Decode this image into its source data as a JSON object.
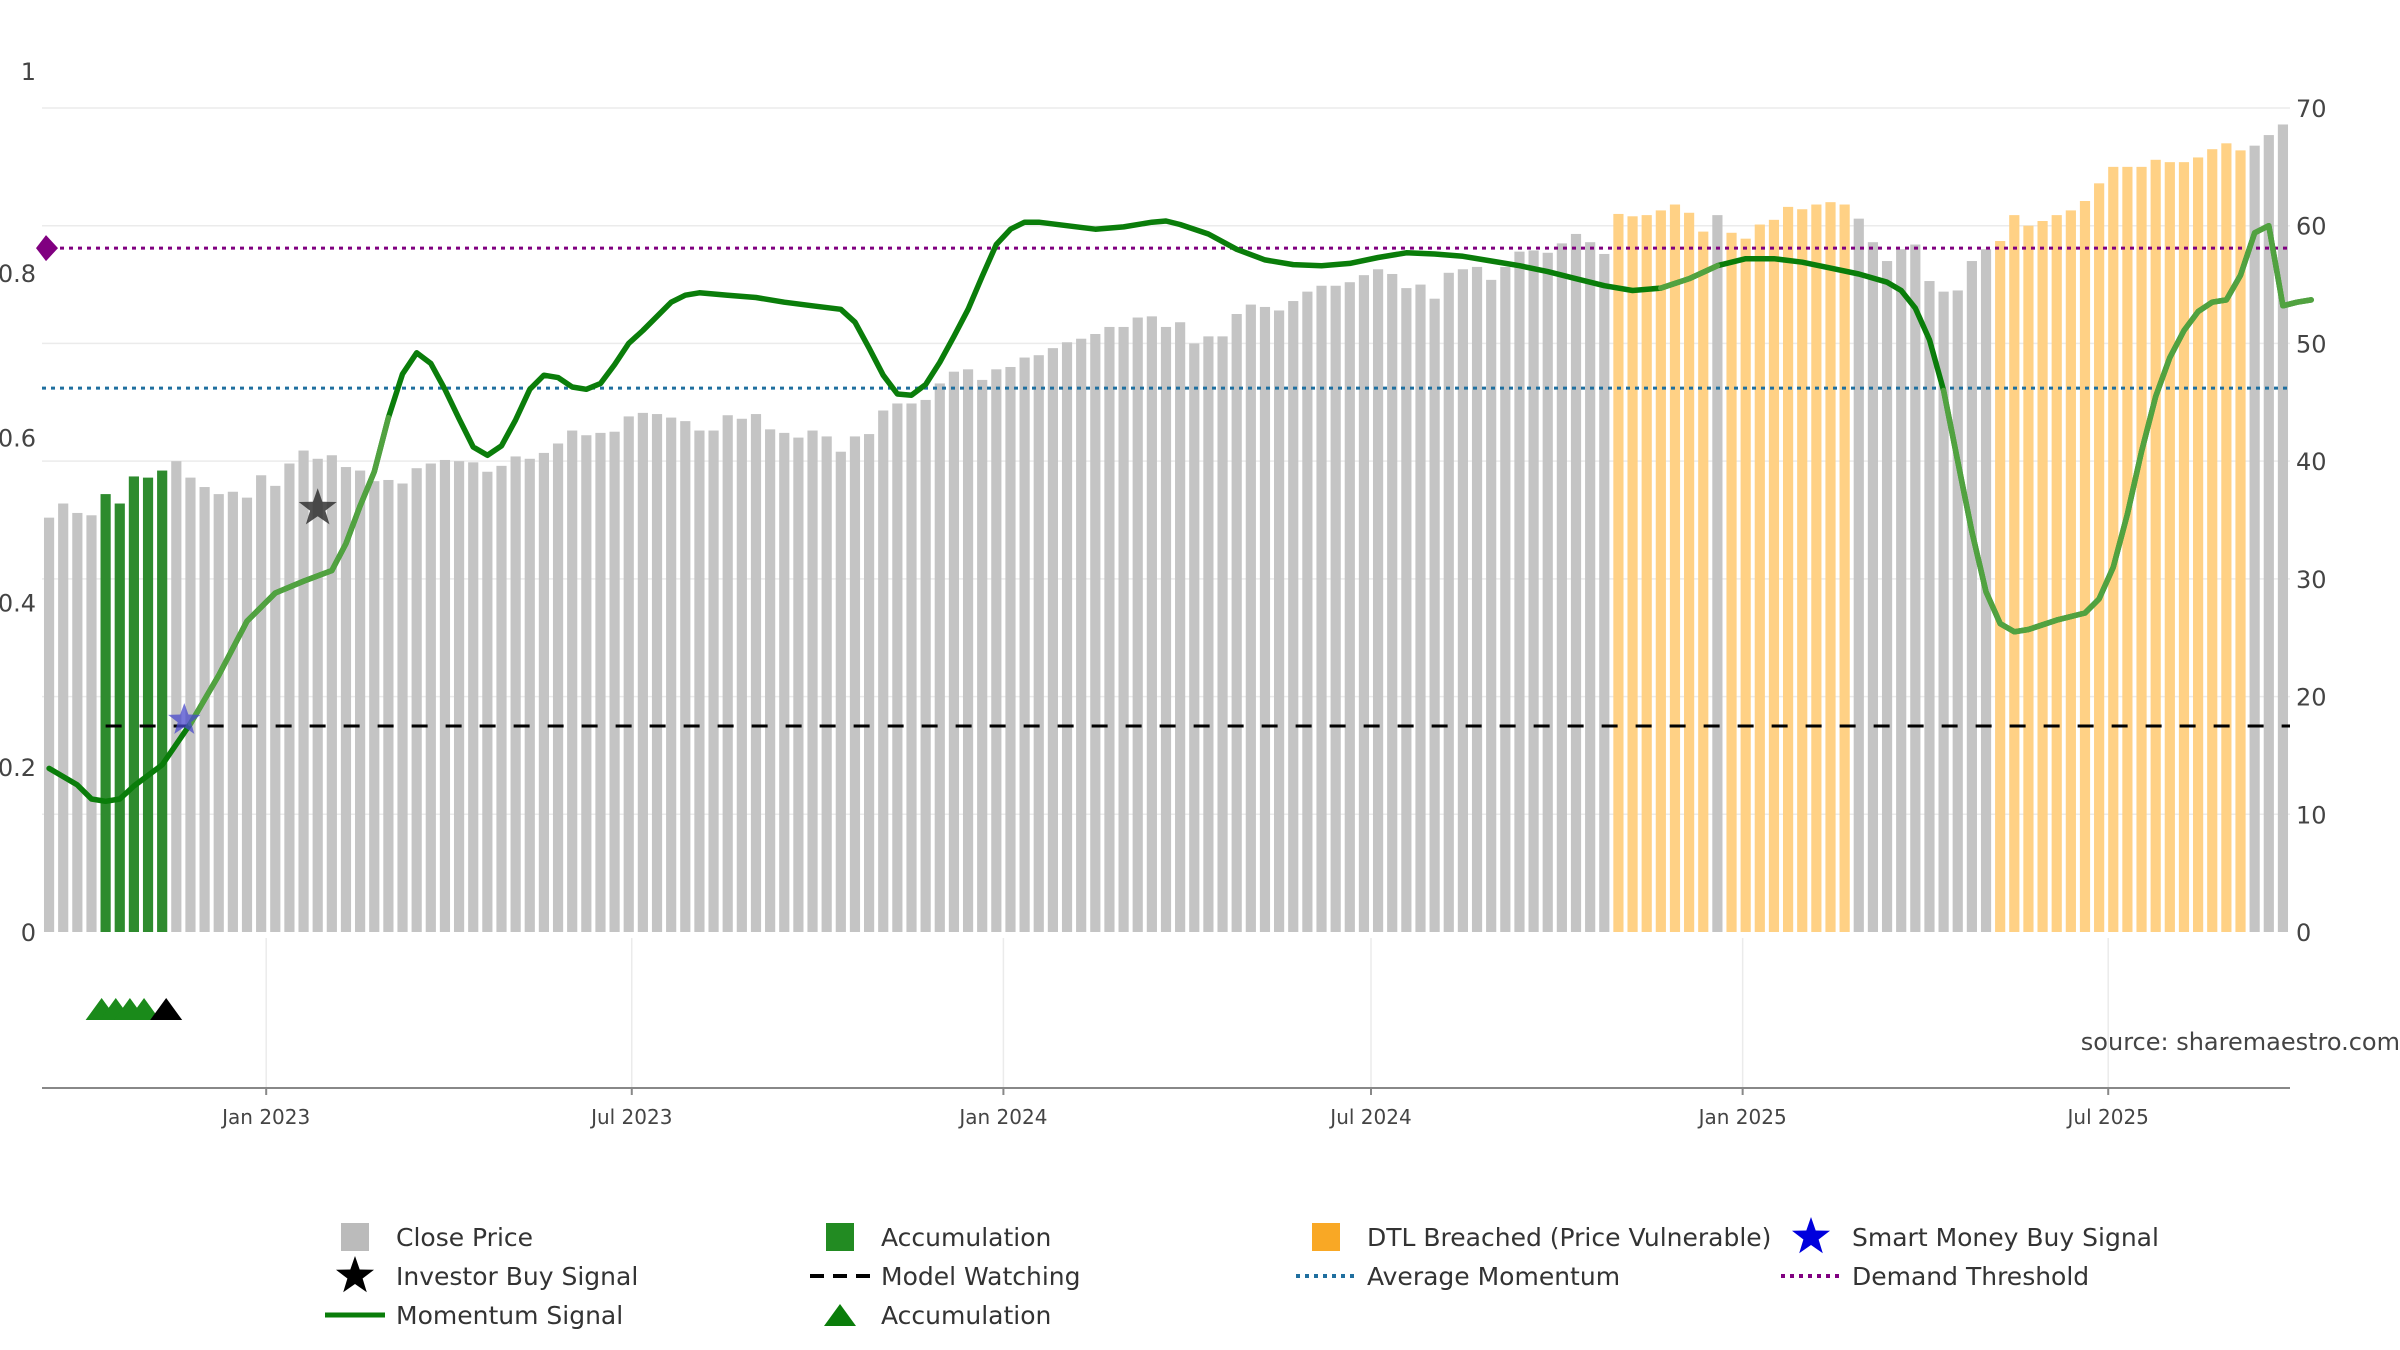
{
  "chart_data": {
    "type": "bar",
    "title": "",
    "source": "source: sharemaestro.com",
    "x_ticks": [
      "Jan 2023",
      "Jul 2023",
      "Jan 2024",
      "Jul 2024",
      "Jan 2025",
      "Jul 2025"
    ],
    "y_left": {
      "ticks": [
        "0",
        "0.2",
        "0.4",
        "0.6",
        "0.8",
        "1"
      ],
      "range": [
        0,
        1
      ]
    },
    "y_right": {
      "ticks": [
        "0",
        "10",
        "20",
        "30",
        "40",
        "50",
        "60",
        "70"
      ],
      "range": [
        0,
        70
      ]
    },
    "date_range": [
      "2022-09-12",
      "2025-09-29"
    ],
    "reference_lines": {
      "demand_threshold": 0.83,
      "average_momentum": 0.66,
      "model_watching": 0.25
    },
    "close_price_weekly": [
      35.2,
      36.4,
      35.6,
      35.4,
      37.2,
      36.4,
      38.7,
      38.6,
      39.2,
      40.0,
      38.6,
      37.8,
      37.2,
      37.4,
      36.9,
      38.8,
      37.9,
      39.8,
      40.9,
      40.2,
      40.5,
      39.5,
      39.2,
      38.3,
      38.4,
      38.1,
      39.4,
      39.8,
      40.1,
      40.0,
      39.9,
      39.1,
      39.6,
      40.4,
      40.2,
      40.7,
      41.5,
      42.6,
      42.2,
      42.4,
      42.5,
      43.8,
      44.1,
      44.0,
      43.7,
      43.4,
      42.6,
      42.6,
      43.9,
      43.6,
      44.0,
      42.7,
      42.4,
      42.0,
      42.6,
      42.1,
      40.8,
      42.1,
      42.3,
      44.3,
      44.9,
      44.9,
      45.2,
      46.6,
      47.6,
      47.8,
      46.9,
      47.8,
      48.0,
      48.8,
      49.0,
      49.6,
      50.1,
      50.4,
      50.8,
      51.4,
      51.4,
      52.2,
      52.3,
      51.4,
      51.8,
      50.0,
      50.6,
      50.6,
      52.5,
      53.3,
      53.1,
      52.8,
      53.6,
      54.4,
      54.9,
      54.9,
      55.2,
      55.8,
      56.3,
      55.9,
      54.7,
      55.0,
      53.8,
      56.0,
      56.3,
      56.5,
      55.4,
      56.5,
      57.8,
      57.9,
      57.7,
      58.5,
      59.3,
      58.6,
      57.6,
      61.0,
      60.8,
      60.9,
      61.3,
      61.8,
      61.1,
      59.5,
      60.9,
      59.4,
      58.9,
      60.1,
      60.5,
      61.6,
      61.4,
      61.8,
      62.0,
      61.8,
      60.6,
      58.6,
      57.0,
      58.0,
      58.4,
      55.3,
      54.4,
      54.5,
      57.0,
      58.0,
      58.7,
      60.9,
      60.0,
      60.4,
      60.9,
      61.3,
      62.1,
      63.6,
      65.0,
      65.0,
      65.0,
      65.6,
      65.4,
      65.4,
      65.8,
      66.5,
      67.0,
      66.4,
      66.8,
      67.7,
      68.6
    ],
    "accumulation_weeks": [
      4,
      5,
      6,
      7,
      8
    ],
    "dtl_breached_weeks": [
      [
        111,
        117
      ],
      [
        119,
        127
      ],
      [
        138,
        155
      ]
    ],
    "momentum_signal": [
      [
        0,
        13.9
      ],
      [
        2,
        12.5
      ],
      [
        3,
        11.3
      ],
      [
        4,
        11.1
      ],
      [
        5,
        11.3
      ],
      [
        6,
        12.4
      ],
      [
        8,
        14.2
      ],
      [
        10,
        17.7
      ],
      [
        12,
        21.8
      ],
      [
        14,
        26.4
      ],
      [
        16,
        28.8
      ],
      [
        18,
        29.8
      ],
      [
        20,
        30.7
      ],
      [
        21,
        33.0
      ],
      [
        22,
        36.2
      ],
      [
        23,
        39.1
      ],
      [
        24,
        43.7
      ],
      [
        25,
        47.4
      ],
      [
        26,
        49.2
      ],
      [
        27,
        48.3
      ],
      [
        28,
        46.1
      ],
      [
        29,
        43.6
      ],
      [
        30,
        41.2
      ],
      [
        31,
        40.5
      ],
      [
        32,
        41.3
      ],
      [
        33,
        43.5
      ],
      [
        34,
        46.1
      ],
      [
        35,
        47.3
      ],
      [
        36,
        47.1
      ],
      [
        37,
        46.3
      ],
      [
        38,
        46.1
      ],
      [
        39,
        46.6
      ],
      [
        40,
        48.2
      ],
      [
        41,
        50.0
      ],
      [
        42,
        51.1
      ],
      [
        44,
        53.5
      ],
      [
        45,
        54.1
      ],
      [
        46,
        54.3
      ],
      [
        48,
        54.1
      ],
      [
        50,
        53.9
      ],
      [
        52,
        53.5
      ],
      [
        54,
        53.2
      ],
      [
        56,
        52.9
      ],
      [
        57,
        51.8
      ],
      [
        58,
        49.6
      ],
      [
        59,
        47.3
      ],
      [
        60,
        45.7
      ],
      [
        61,
        45.6
      ],
      [
        62,
        46.5
      ],
      [
        63,
        48.4
      ],
      [
        64,
        50.6
      ],
      [
        65,
        52.9
      ],
      [
        66,
        55.7
      ],
      [
        67,
        58.4
      ],
      [
        68,
        59.7
      ],
      [
        69,
        60.3
      ],
      [
        70,
        60.3
      ],
      [
        72,
        60.0
      ],
      [
        74,
        59.7
      ],
      [
        76,
        59.9
      ],
      [
        78,
        60.3
      ],
      [
        79,
        60.4
      ],
      [
        80,
        60.1
      ],
      [
        82,
        59.3
      ],
      [
        84,
        58.0
      ],
      [
        86,
        57.1
      ],
      [
        88,
        56.7
      ],
      [
        90,
        56.6
      ],
      [
        92,
        56.8
      ],
      [
        94,
        57.3
      ],
      [
        96,
        57.7
      ],
      [
        98,
        57.6
      ],
      [
        100,
        57.4
      ],
      [
        102,
        57.0
      ],
      [
        104,
        56.6
      ],
      [
        106,
        56.1
      ],
      [
        108,
        55.5
      ],
      [
        110,
        54.9
      ],
      [
        112,
        54.5
      ],
      [
        114,
        54.7
      ],
      [
        116,
        55.5
      ],
      [
        118,
        56.6
      ],
      [
        120,
        57.2
      ],
      [
        122,
        57.2
      ],
      [
        124,
        56.9
      ],
      [
        126,
        56.4
      ],
      [
        128,
        55.9
      ],
      [
        130,
        55.2
      ],
      [
        131,
        54.5
      ],
      [
        132,
        53.0
      ],
      [
        133,
        50.3
      ],
      [
        134,
        46.0
      ],
      [
        135,
        40.0
      ],
      [
        136,
        34.0
      ],
      [
        137,
        28.9
      ],
      [
        138,
        26.2
      ],
      [
        139,
        25.5
      ],
      [
        140,
        25.7
      ],
      [
        142,
        26.5
      ],
      [
        144,
        27.1
      ],
      [
        145,
        28.3
      ],
      [
        146,
        31.0
      ],
      [
        147,
        35.5
      ],
      [
        148,
        40.8
      ],
      [
        149,
        45.5
      ],
      [
        150,
        48.8
      ],
      [
        151,
        51.1
      ],
      [
        152,
        52.7
      ],
      [
        153,
        53.5
      ],
      [
        154,
        53.7
      ],
      [
        155,
        55.8
      ],
      [
        156,
        59.4
      ],
      [
        157,
        60.0
      ],
      [
        158,
        53.2
      ],
      [
        159,
        53.5
      ],
      [
        160,
        53.7
      ]
    ],
    "momentum_lighter_segments": [
      [
        9,
        24
      ],
      [
        114,
        119
      ],
      [
        134,
        160
      ]
    ],
    "investor_buy_signals": [
      {
        "week": 19,
        "y": 36.0
      }
    ],
    "smart_money_buy_signals": [
      {
        "week": 9,
        "y": 18.0
      }
    ],
    "accumulation_markers": [
      4,
      5,
      6,
      7
    ],
    "investor_markers": [
      8
    ],
    "demand_threshold_marker": true,
    "legend": [
      {
        "label": "Close Price",
        "symbol": "square",
        "color": "#bbbbbb"
      },
      {
        "label": "Accumulation",
        "symbol": "square",
        "color": "#228b22"
      },
      {
        "label": "DTL Breached (Price Vulnerable)",
        "symbol": "square",
        "color": "#f9a825"
      },
      {
        "label": "Smart Money Buy Signal",
        "symbol": "star",
        "color": "#0000dd"
      },
      {
        "label": "Investor Buy Signal",
        "symbol": "star",
        "color": "#000000"
      },
      {
        "label": "Model Watching",
        "symbol": "dash",
        "color": "#000000"
      },
      {
        "label": "Average Momentum",
        "symbol": "dot",
        "color": "#1f6f9f"
      },
      {
        "label": "Demand Threshold",
        "symbol": "dot",
        "color": "#800080"
      },
      {
        "label": "Momentum Signal",
        "symbol": "line",
        "color": "#0a7d0a"
      },
      {
        "label": "Accumulation",
        "symbol": "triangle",
        "color": "#0a7d0a"
      }
    ],
    "colors": {
      "close": "#c4c4c4",
      "accum": "#2e8b2e",
      "dtl": "#ffd185",
      "momentum": "#0a7d0a",
      "momentum_light": "#5ea84a",
      "avg": "#1f6f9f",
      "demand": "#800080",
      "grid": "#ebebeb",
      "axis": "#888888"
    }
  }
}
